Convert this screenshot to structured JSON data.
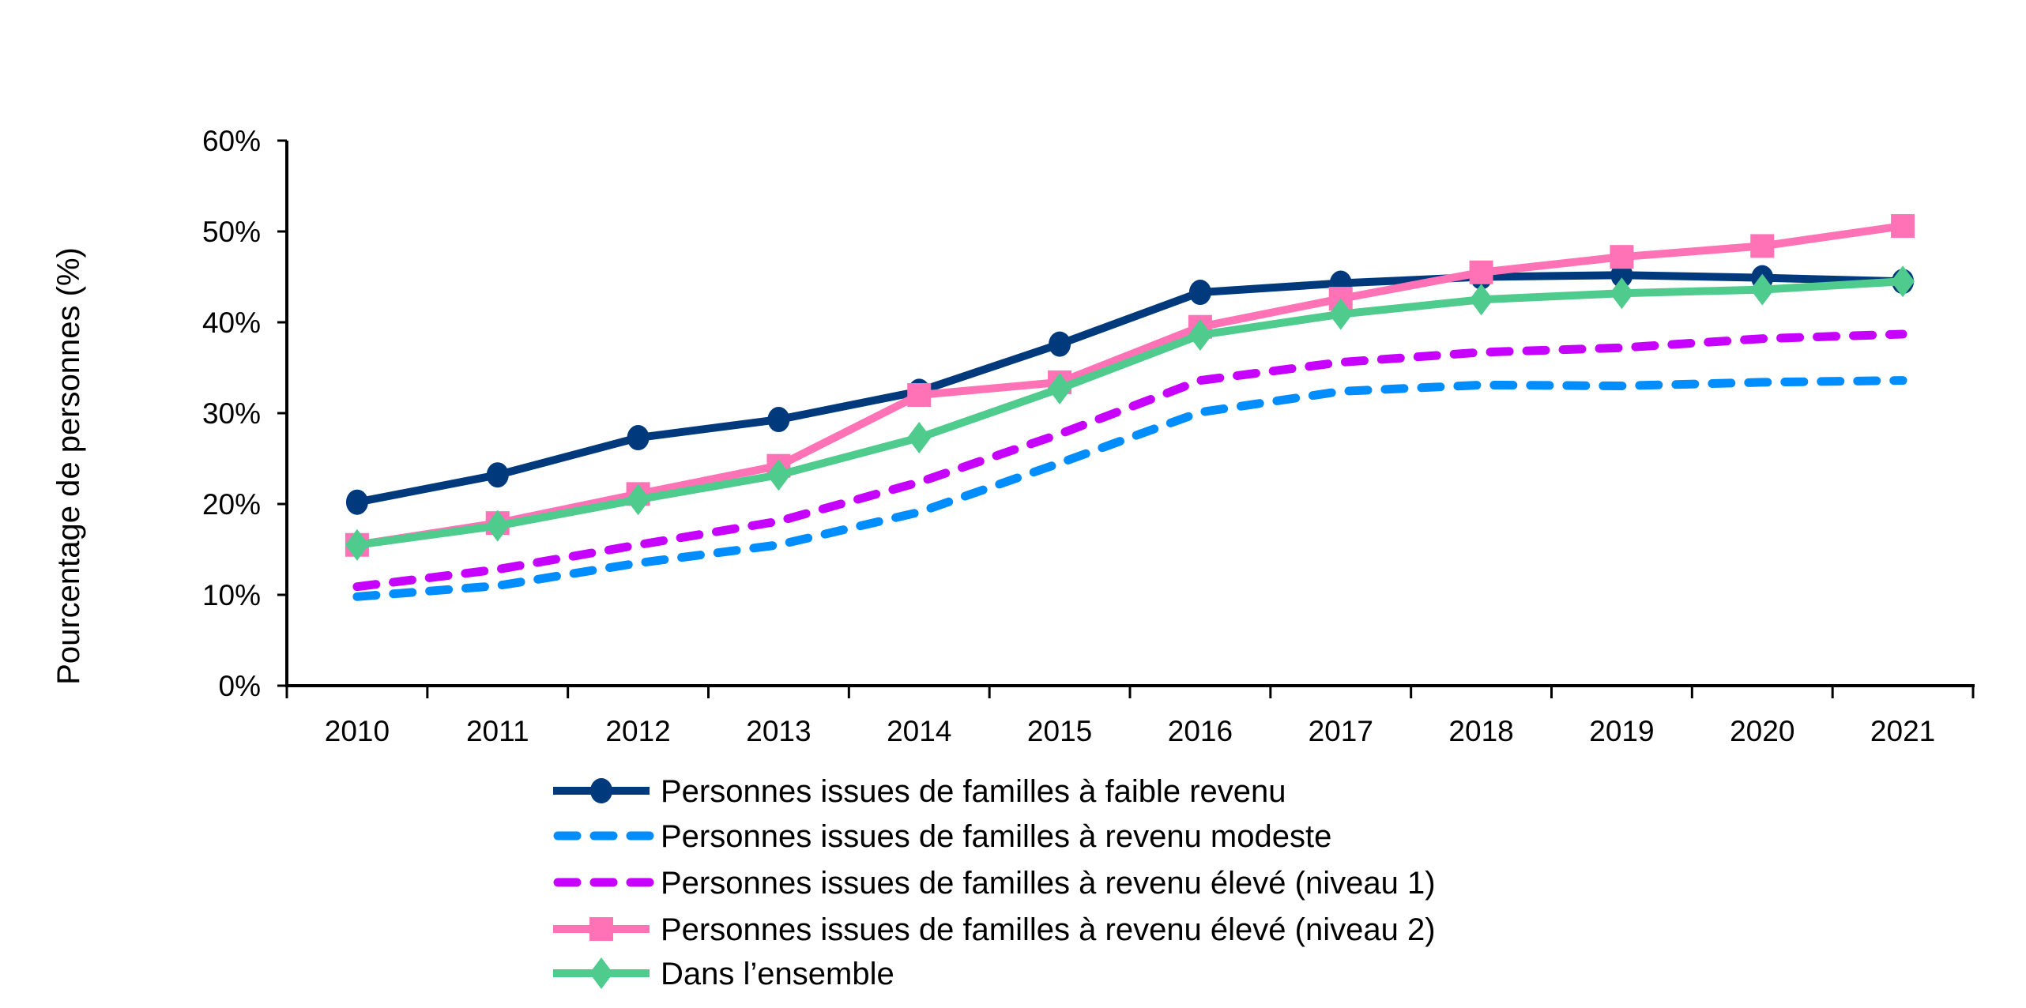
{
  "chart_data": {
    "type": "line",
    "title": "",
    "xlabel": "",
    "ylabel": "Pourcentage de personnes (%)",
    "ylim": [
      0,
      60
    ],
    "yticks": [
      "0%",
      "10%",
      "20%",
      "30%",
      "40%",
      "50%",
      "60%"
    ],
    "ytick_values": [
      0,
      10,
      20,
      30,
      40,
      50,
      60
    ],
    "categories": [
      "2010",
      "2011",
      "2012",
      "2013",
      "2014",
      "2015",
      "2016",
      "2017",
      "2018",
      "2019",
      "2020",
      "2021"
    ],
    "grid": false,
    "legend_position": "bottom",
    "series": [
      {
        "name": "Personnes issues de familles à faible revenu",
        "color": "#003a7d",
        "style": "solid",
        "marker": "circle",
        "values": [
          20.2,
          23.2,
          27.3,
          29.3,
          32.4,
          37.6,
          43.3,
          44.3,
          45.0,
          45.2,
          44.9,
          44.5
        ]
      },
      {
        "name": "Personnes issues de familles à revenu modeste",
        "color": "#008dff",
        "style": "dashed",
        "marker": "none",
        "values": [
          9.8,
          11.0,
          13.5,
          15.5,
          19.1,
          24.5,
          30.1,
          32.4,
          33.1,
          33.0,
          33.4,
          33.6
        ]
      },
      {
        "name": "Personnes issues de familles à revenu élevé (niveau 1)",
        "color": "#c701ff",
        "style": "dashed",
        "marker": "none",
        "values": [
          10.9,
          12.8,
          15.5,
          18.1,
          22.4,
          27.7,
          33.6,
          35.6,
          36.7,
          37.2,
          38.2,
          38.7
        ]
      },
      {
        "name": "Personnes issues de familles à revenu élevé (niveau 2)",
        "color": "#ff73b6",
        "style": "solid",
        "marker": "square",
        "values": [
          15.5,
          17.9,
          21.1,
          24.2,
          32.0,
          33.4,
          39.5,
          42.6,
          45.5,
          47.2,
          48.4,
          50.6
        ]
      },
      {
        "name": "Dans l’ensemble",
        "color": "#4ecb8d",
        "style": "solid",
        "marker": "diamond",
        "values": [
          15.5,
          17.6,
          20.5,
          23.2,
          27.3,
          32.7,
          38.6,
          40.9,
          42.5,
          43.2,
          43.6,
          44.5
        ]
      }
    ]
  }
}
